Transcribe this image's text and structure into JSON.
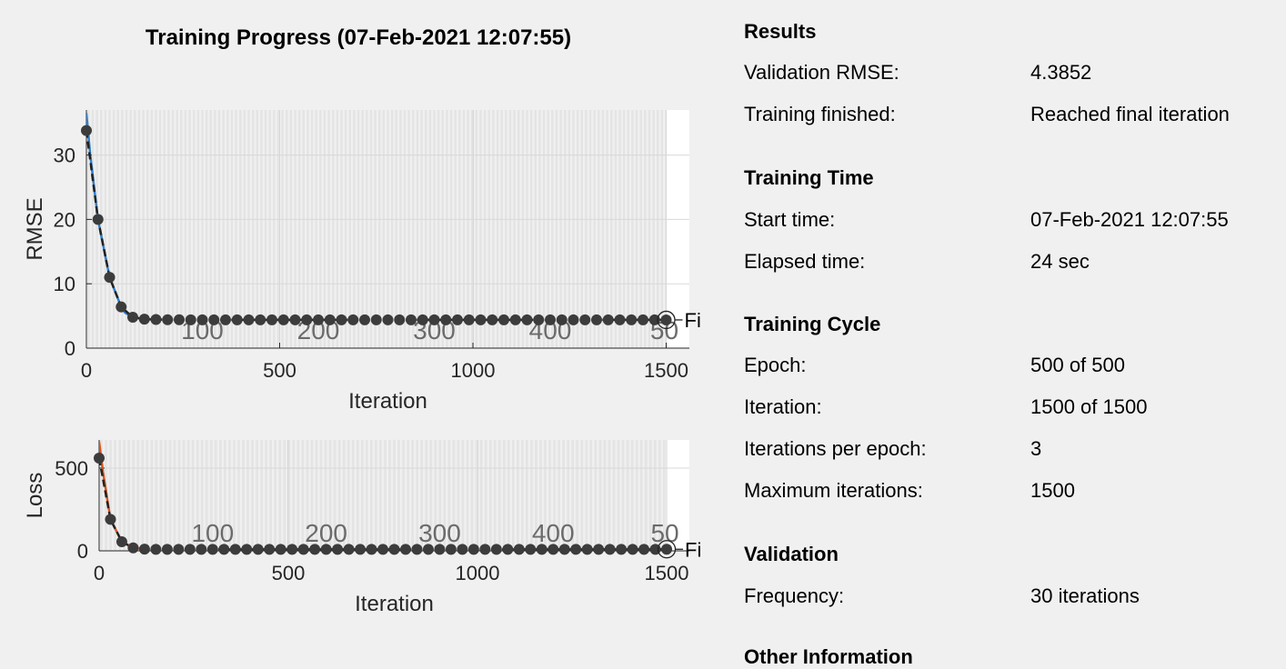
{
  "plot_title": "Training Progress (07-Feb-2021 12:07:55)",
  "chart_data": [
    {
      "type": "line",
      "name": "rmse",
      "xlabel": "Iteration",
      "ylabel": "RMSE",
      "xlim": [
        0,
        1560
      ],
      "ylim": [
        0,
        37
      ],
      "xticks": [
        0,
        500,
        1000,
        1500
      ],
      "yticks": [
        0,
        10,
        20,
        30
      ],
      "grid": true,
      "line_color": "#2f7fce",
      "epoch_axis_labels": [
        "100",
        "200",
        "300",
        "400",
        "50"
      ],
      "epoch_label_iterations": [
        300,
        600,
        900,
        1200,
        1500
      ],
      "final_marker_label": "Fi",
      "validation_points": {
        "x": [
          0,
          30,
          60,
          90,
          120,
          150,
          180,
          210,
          240,
          270,
          300,
          330,
          360,
          390,
          420,
          450,
          480,
          510,
          540,
          570,
          600,
          630,
          660,
          690,
          720,
          750,
          780,
          810,
          840,
          870,
          900,
          930,
          960,
          990,
          1020,
          1050,
          1080,
          1110,
          1140,
          1170,
          1200,
          1230,
          1260,
          1290,
          1320,
          1350,
          1380,
          1410,
          1440,
          1470,
          1500
        ],
        "y": [
          33.8,
          20.0,
          11.0,
          6.4,
          4.8,
          4.5,
          4.45,
          4.42,
          4.41,
          4.4,
          4.4,
          4.39,
          4.39,
          4.39,
          4.39,
          4.39,
          4.39,
          4.39,
          4.39,
          4.39,
          4.39,
          4.39,
          4.39,
          4.39,
          4.39,
          4.39,
          4.39,
          4.39,
          4.39,
          4.39,
          4.39,
          4.39,
          4.39,
          4.39,
          4.39,
          4.39,
          4.39,
          4.39,
          4.39,
          4.39,
          4.39,
          4.39,
          4.39,
          4.39,
          4.39,
          4.39,
          4.39,
          4.39,
          4.39,
          4.39,
          4.385
        ]
      },
      "training_curve": {
        "x": [
          0,
          10,
          30,
          60,
          90,
          100,
          120
        ],
        "y": [
          36.5,
          30,
          20,
          11,
          6.4,
          5.5,
          4.8
        ]
      }
    },
    {
      "type": "line",
      "name": "loss",
      "xlabel": "Iteration",
      "ylabel": "Loss",
      "xlim": [
        0,
        1560
      ],
      "ylim": [
        0,
        670
      ],
      "xticks": [
        0,
        500,
        1000,
        1500
      ],
      "yticks": [
        0,
        500
      ],
      "grid": true,
      "line_color": "#d9541e",
      "epoch_axis_labels": [
        "100",
        "200",
        "300",
        "400",
        "50"
      ],
      "epoch_label_iterations": [
        300,
        600,
        900,
        1200,
        1500
      ],
      "final_marker_label": "Fi",
      "validation_points": {
        "x": [
          0,
          30,
          60,
          90,
          120,
          150,
          180,
          210,
          240,
          270,
          300,
          330,
          360,
          390,
          420,
          450,
          480,
          510,
          540,
          570,
          600,
          630,
          660,
          690,
          720,
          750,
          780,
          810,
          840,
          870,
          900,
          930,
          960,
          990,
          1020,
          1050,
          1080,
          1110,
          1140,
          1170,
          1200,
          1230,
          1260,
          1290,
          1320,
          1350,
          1380,
          1410,
          1440,
          1470,
          1500
        ],
        "y": [
          560,
          190,
          55,
          18,
          10,
          9,
          9,
          9,
          9,
          9,
          9,
          9,
          9,
          9,
          9,
          9,
          9,
          9,
          9,
          9,
          9,
          9,
          9,
          9,
          9,
          9,
          9,
          9,
          9,
          9,
          9,
          9,
          9,
          9,
          9,
          9,
          9,
          9,
          9,
          9,
          9,
          9,
          9,
          9,
          9,
          9,
          9,
          9,
          9,
          9,
          9.6
        ]
      },
      "training_curve": {
        "x": [
          0,
          10,
          30,
          60,
          90,
          120
        ],
        "y": [
          660,
          480,
          190,
          55,
          18,
          10
        ]
      }
    }
  ],
  "info": {
    "results": {
      "heading": "Results",
      "validation_rmse_label": "Validation RMSE:",
      "validation_rmse_value": "4.3852",
      "training_finished_label": "Training finished:",
      "training_finished_value": "Reached final iteration"
    },
    "training_time": {
      "heading": "Training Time",
      "start_time_label": "Start time:",
      "start_time_value": "07-Feb-2021 12:07:55",
      "elapsed_time_label": "Elapsed time:",
      "elapsed_time_value": "24 sec"
    },
    "training_cycle": {
      "heading": "Training Cycle",
      "epoch_label": "Epoch:",
      "epoch_value": "500 of 500",
      "iteration_label": "Iteration:",
      "iteration_value": "1500 of 1500",
      "iterations_per_epoch_label": "Iterations per epoch:",
      "iterations_per_epoch_value": "3",
      "maximum_iterations_label": "Maximum iterations:",
      "maximum_iterations_value": "1500"
    },
    "validation": {
      "heading": "Validation",
      "frequency_label": "Frequency:",
      "frequency_value": "30 iterations"
    },
    "other_information": {
      "heading": "Other Information"
    }
  }
}
